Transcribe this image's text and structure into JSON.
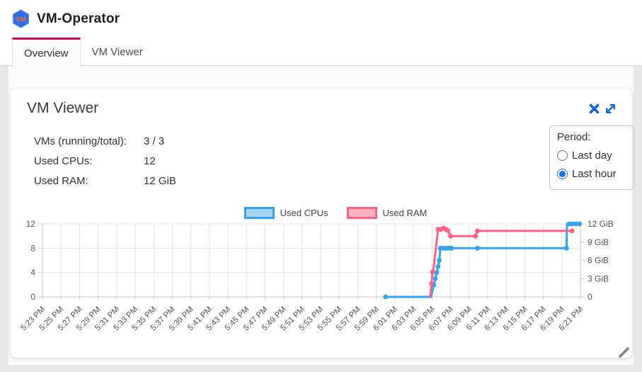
{
  "header": {
    "app_title": "VM-Operator",
    "logo_text": "VM"
  },
  "tabs": [
    {
      "label": "Overview",
      "active": true
    },
    {
      "label": "VM Viewer",
      "active": false
    }
  ],
  "card": {
    "title": "VM Viewer",
    "stats": [
      {
        "label": "VMs (running/total):",
        "value": "3 / 3"
      },
      {
        "label": "Used CPUs:",
        "value": "12"
      },
      {
        "label": "Used RAM:",
        "value": "12 GiB"
      }
    ],
    "period": {
      "label": "Period:",
      "options": [
        {
          "label": "Last day",
          "selected": false
        },
        {
          "label": "Last hour",
          "selected": true
        }
      ]
    }
  },
  "colors": {
    "tab_accent": "#cc0066",
    "icon_blue": "#1566d8",
    "cpu_line": "#36a2eb",
    "cpu_legend_fill": "#a5d3f5",
    "ram_line": "#ff6384",
    "ram_legend_fill": "#ffb1c1",
    "grid": "#e3e3e3",
    "axis": "#c9c9c9",
    "tick_text": "#555555"
  },
  "chart_data": {
    "type": "line",
    "title": "",
    "x_axis": {
      "tick_interval_minutes": 2,
      "tick_labels": [
        "5:23 PM",
        "5:25 PM",
        "5:27 PM",
        "5:29 PM",
        "5:31 PM",
        "5:33 PM",
        "5:35 PM",
        "5:37 PM",
        "5:39 PM",
        "5:41 PM",
        "5:43 PM",
        "5:45 PM",
        "5:47 PM",
        "5:49 PM",
        "5:51 PM",
        "5:53 PM",
        "5:55 PM",
        "5:57 PM",
        "5:59 PM",
        "6:01 PM",
        "6:03 PM",
        "6:05 PM",
        "6:07 PM",
        "6:09 PM",
        "6:11 PM",
        "6:13 PM",
        "6:15 PM",
        "6:17 PM",
        "6:19 PM",
        "6:21 PM"
      ]
    },
    "left_axis": {
      "range": [
        0,
        12
      ],
      "tick_values": [
        0,
        4,
        8,
        12
      ],
      "tick_labels": [
        "0",
        "4",
        "8",
        "12"
      ]
    },
    "right_axis": {
      "range": [
        0,
        12
      ],
      "tick_values": [
        0,
        3,
        6,
        9,
        12
      ],
      "tick_labels": [
        "0",
        "3 GiB",
        "6 GiB",
        "9 GiB",
        "12 GiB"
      ]
    },
    "legend_position": "top-center",
    "grid": true,
    "series": [
      {
        "name": "Used CPUs",
        "axis": "left",
        "unit": "CPUs",
        "color": "#36a2eb",
        "points_format": "[minutes_after_5:23_PM, value, marker]",
        "points": [
          [
            37.0,
            0,
            1
          ],
          [
            41.9,
            0,
            0
          ],
          [
            42.2,
            2,
            1
          ],
          [
            42.35,
            3,
            1
          ],
          [
            42.5,
            4,
            1
          ],
          [
            42.65,
            5,
            1
          ],
          [
            42.78,
            6,
            1
          ],
          [
            42.9,
            8,
            1
          ],
          [
            43.2,
            8,
            1
          ],
          [
            43.5,
            8,
            1
          ],
          [
            43.8,
            8,
            1
          ],
          [
            44.1,
            8,
            1
          ],
          [
            46.9,
            8,
            1
          ],
          [
            56.5,
            8,
            1
          ],
          [
            56.55,
            12,
            0
          ],
          [
            56.8,
            12,
            1
          ],
          [
            57.1,
            12,
            1
          ],
          [
            57.5,
            12,
            1
          ],
          [
            57.9,
            12,
            1
          ]
        ]
      },
      {
        "name": "Used RAM",
        "axis": "right",
        "unit": "GiB",
        "color": "#ff6384",
        "points_format": "[minutes_after_5:23_PM, value, marker]",
        "points": [
          [
            41.8,
            0,
            0
          ],
          [
            41.95,
            2.2,
            1
          ],
          [
            42.05,
            4.1,
            1
          ],
          [
            42.15,
            4.5,
            0
          ],
          [
            42.65,
            11.1,
            1
          ],
          [
            42.95,
            11.1,
            1
          ],
          [
            43.25,
            11.3,
            1
          ],
          [
            43.5,
            11.1,
            1
          ],
          [
            43.7,
            10.9,
            1
          ],
          [
            44.0,
            10.0,
            1
          ],
          [
            46.7,
            10.0,
            1
          ],
          [
            46.9,
            10.85,
            1
          ],
          [
            57.1,
            10.85,
            1
          ]
        ]
      }
    ]
  }
}
